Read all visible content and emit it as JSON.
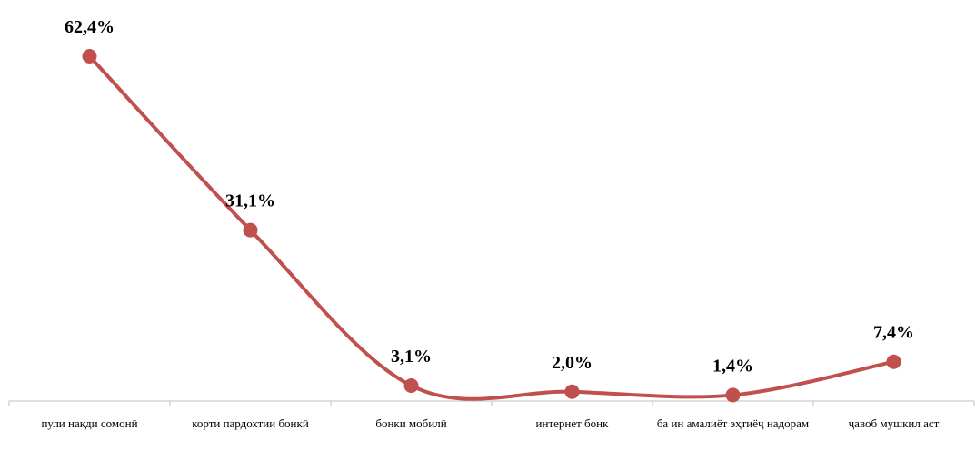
{
  "chart_data": {
    "type": "line",
    "categories": [
      "пули нақди сомонӣ",
      "корти пардохтии бонкӣ",
      "бонки мобилӣ",
      "интернет бонк",
      "ба ин амалиёт эҳтиёҷ надорам",
      "ҷавоб мушкил аст"
    ],
    "values": [
      62.4,
      31.1,
      3.1,
      2.0,
      1.4,
      7.4
    ],
    "value_labels": [
      "62,4%",
      "31,1%",
      "3,1%",
      "2,0%",
      "1,4%",
      "7,4%"
    ],
    "color": "#c0504d",
    "smooth": true
  }
}
